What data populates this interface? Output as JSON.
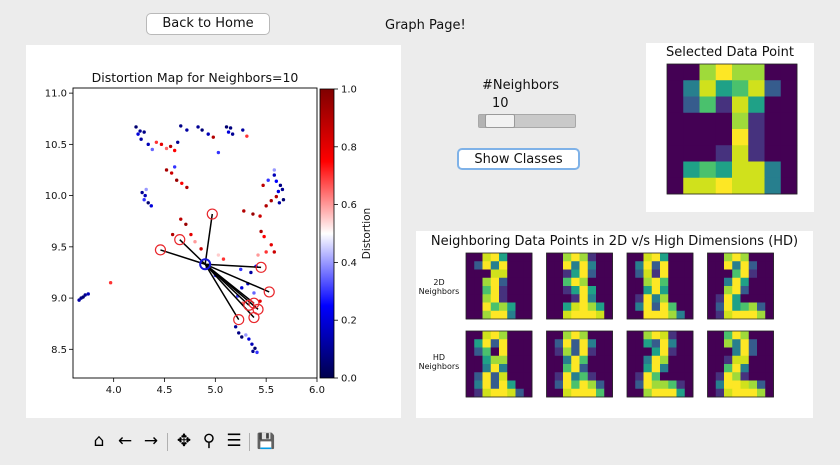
{
  "header": {
    "back_label": "Back to Home",
    "title": "Graph Page!"
  },
  "controls": {
    "neighbors_label": "#Neighbors",
    "neighbors_value": "10",
    "slider_level": 0.1,
    "show_classes_label": "Show Classes"
  },
  "selected": {
    "title": "Selected Data Point",
    "pixels": [
      [
        0,
        0,
        6,
        8,
        6,
        6,
        0,
        0
      ],
      [
        0,
        3,
        7,
        4,
        5,
        7,
        2,
        0
      ],
      [
        0,
        2,
        5,
        1,
        7,
        4,
        0,
        0
      ],
      [
        0,
        0,
        0,
        0,
        6,
        1,
        0,
        0
      ],
      [
        0,
        0,
        0,
        0,
        8,
        1,
        0,
        0
      ],
      [
        0,
        0,
        0,
        1,
        7,
        1,
        0,
        0
      ],
      [
        0,
        4,
        5,
        4,
        7,
        7,
        3,
        0
      ],
      [
        0,
        7,
        7,
        8,
        7,
        7,
        3,
        0
      ]
    ]
  },
  "neighbors": {
    "title": "Neighboring Data Points in 2D v/s High Dimensions (HD)",
    "row_2d": [
      "2D",
      "Neighbors"
    ],
    "row_hd": [
      "HD",
      "Neighbors"
    ],
    "images_2d": [
      [
        [
          0,
          0,
          7,
          8,
          4,
          0,
          0,
          0
        ],
        [
          0,
          2,
          8,
          3,
          8,
          0,
          0,
          0
        ],
        [
          0,
          0,
          0,
          7,
          7,
          0,
          0,
          0
        ],
        [
          0,
          0,
          6,
          8,
          2,
          0,
          0,
          0
        ],
        [
          0,
          0,
          5,
          8,
          1,
          0,
          0,
          0
        ],
        [
          0,
          0,
          6,
          8,
          1,
          0,
          0,
          0
        ],
        [
          0,
          0,
          8,
          5,
          6,
          4,
          0,
          0
        ],
        [
          0,
          0,
          6,
          8,
          8,
          3,
          0,
          0
        ]
      ],
      [
        [
          0,
          0,
          6,
          8,
          6,
          1,
          0,
          0
        ],
        [
          0,
          0,
          8,
          3,
          8,
          3,
          0,
          0
        ],
        [
          0,
          0,
          1,
          4,
          8,
          2,
          0,
          0
        ],
        [
          0,
          0,
          5,
          8,
          6,
          0,
          0,
          0
        ],
        [
          0,
          0,
          1,
          4,
          8,
          4,
          0,
          0
        ],
        [
          0,
          0,
          0,
          1,
          8,
          3,
          0,
          0
        ],
        [
          0,
          0,
          4,
          7,
          8,
          6,
          4,
          0
        ],
        [
          0,
          0,
          7,
          8,
          8,
          8,
          7,
          0
        ]
      ],
      [
        [
          0,
          0,
          7,
          8,
          4,
          0,
          0,
          0
        ],
        [
          0,
          3,
          8,
          2,
          8,
          0,
          0,
          0
        ],
        [
          0,
          2,
          7,
          1,
          8,
          0,
          0,
          0
        ],
        [
          0,
          0,
          6,
          8,
          5,
          0,
          0,
          0
        ],
        [
          0,
          0,
          4,
          8,
          4,
          0,
          0,
          0
        ],
        [
          0,
          1,
          8,
          3,
          6,
          0,
          0,
          0
        ],
        [
          0,
          3,
          8,
          2,
          8,
          5,
          0,
          0
        ],
        [
          0,
          0,
          8,
          8,
          8,
          6,
          3,
          0
        ]
      ],
      [
        [
          0,
          0,
          6,
          8,
          6,
          0,
          0,
          0
        ],
        [
          0,
          0,
          8,
          3,
          8,
          2,
          0,
          0
        ],
        [
          0,
          0,
          0,
          5,
          8,
          1,
          0,
          0
        ],
        [
          0,
          0,
          3,
          8,
          4,
          0,
          0,
          0
        ],
        [
          0,
          0,
          6,
          8,
          2,
          0,
          0,
          0
        ],
        [
          0,
          1,
          8,
          4,
          0,
          0,
          0,
          0
        ],
        [
          0,
          2,
          8,
          4,
          5,
          6,
          2,
          0
        ],
        [
          0,
          1,
          7,
          8,
          8,
          8,
          6,
          0
        ]
      ]
    ],
    "images_hd": [
      [
        [
          0,
          0,
          7,
          8,
          6,
          0,
          0,
          0
        ],
        [
          0,
          4,
          8,
          2,
          8,
          0,
          0,
          0
        ],
        [
          0,
          2,
          5,
          0,
          8,
          0,
          0,
          0
        ],
        [
          0,
          0,
          4,
          6,
          6,
          0,
          0,
          0
        ],
        [
          0,
          0,
          3,
          8,
          3,
          0,
          0,
          0
        ],
        [
          0,
          2,
          8,
          2,
          7,
          0,
          0,
          0
        ],
        [
          0,
          3,
          8,
          2,
          8,
          4,
          0,
          0
        ],
        [
          0,
          1,
          7,
          8,
          8,
          7,
          2,
          0
        ]
      ],
      [
        [
          0,
          0,
          6,
          8,
          6,
          0,
          0,
          0
        ],
        [
          0,
          2,
          8,
          2,
          8,
          3,
          0,
          0
        ],
        [
          0,
          1,
          6,
          2,
          8,
          1,
          0,
          0
        ],
        [
          0,
          0,
          3,
          8,
          5,
          0,
          0,
          0
        ],
        [
          0,
          0,
          5,
          8,
          2,
          0,
          0,
          0
        ],
        [
          0,
          1,
          8,
          3,
          5,
          1,
          0,
          0
        ],
        [
          0,
          2,
          8,
          5,
          8,
          6,
          2,
          0
        ],
        [
          0,
          0,
          7,
          8,
          8,
          8,
          5,
          0
        ]
      ],
      [
        [
          0,
          0,
          6,
          8,
          7,
          1,
          0,
          0
        ],
        [
          0,
          0,
          4,
          2,
          8,
          3,
          0,
          0
        ],
        [
          0,
          0,
          0,
          4,
          8,
          1,
          0,
          0
        ],
        [
          0,
          0,
          3,
          8,
          6,
          0,
          0,
          0
        ],
        [
          0,
          0,
          4,
          8,
          3,
          0,
          0,
          0
        ],
        [
          0,
          1,
          8,
          5,
          0,
          0,
          0,
          0
        ],
        [
          0,
          2,
          8,
          6,
          6,
          5,
          1,
          0
        ],
        [
          0,
          0,
          6,
          8,
          8,
          8,
          4,
          0
        ]
      ],
      [
        [
          0,
          0,
          5,
          8,
          6,
          0,
          0,
          0
        ],
        [
          0,
          0,
          6,
          3,
          8,
          2,
          0,
          0
        ],
        [
          0,
          0,
          0,
          3,
          8,
          2,
          0,
          0
        ],
        [
          0,
          0,
          1,
          7,
          7,
          0,
          0,
          0
        ],
        [
          0,
          0,
          5,
          8,
          3,
          0,
          0,
          0
        ],
        [
          0,
          1,
          8,
          6,
          1,
          0,
          0,
          0
        ],
        [
          0,
          3,
          8,
          8,
          7,
          6,
          2,
          0
        ],
        [
          0,
          1,
          7,
          8,
          8,
          8,
          6,
          0
        ]
      ]
    ]
  },
  "chart_data": {
    "type": "scatter",
    "title": "Distortion Map for Neighbors=10",
    "xlabel": "",
    "ylabel": "",
    "xlim": [
      3.6,
      6.0
    ],
    "ylim": [
      8.22,
      11.05
    ],
    "xticks": [
      "4.0",
      "4.5",
      "5.0",
      "5.5",
      "6.0"
    ],
    "xtick_values": [
      4.0,
      4.5,
      5.0,
      5.5,
      6.0
    ],
    "yticks": [
      "8.5",
      "9.0",
      "9.5",
      "10.0",
      "10.5",
      "11.0"
    ],
    "ytick_values": [
      8.5,
      9.0,
      9.5,
      10.0,
      10.5,
      11.0
    ],
    "colorbar": {
      "label": "Distortion",
      "ticks": [
        "0.0",
        "0.2",
        "0.4",
        "0.6",
        "0.8",
        "1.0"
      ],
      "colormap": "seismic",
      "range": [
        0,
        1
      ]
    },
    "selected_point": {
      "x": 4.9,
      "y": 9.33
    },
    "neighbor_points": [
      {
        "x": 4.46,
        "y": 9.47
      },
      {
        "x": 4.65,
        "y": 9.57
      },
      {
        "x": 4.97,
        "y": 9.82
      },
      {
        "x": 5.45,
        "y": 9.3
      },
      {
        "x": 5.53,
        "y": 9.06
      },
      {
        "x": 5.38,
        "y": 8.95
      },
      {
        "x": 5.42,
        "y": 8.89
      },
      {
        "x": 5.33,
        "y": 8.93
      },
      {
        "x": 5.38,
        "y": 8.81
      },
      {
        "x": 5.23,
        "y": 8.79
      }
    ],
    "points": [
      {
        "x": 4.22,
        "y": 10.67,
        "d": 0.05
      },
      {
        "x": 4.26,
        "y": 10.63,
        "d": 0.1
      },
      {
        "x": 4.3,
        "y": 10.62,
        "d": 0.08
      },
      {
        "x": 4.27,
        "y": 10.55,
        "d": 0.12
      },
      {
        "x": 4.24,
        "y": 10.6,
        "d": 0.2
      },
      {
        "x": 4.34,
        "y": 10.5,
        "d": 0.15
      },
      {
        "x": 4.38,
        "y": 10.45,
        "d": 0.35
      },
      {
        "x": 4.42,
        "y": 10.52,
        "d": 0.7
      },
      {
        "x": 4.47,
        "y": 10.5,
        "d": 0.8
      },
      {
        "x": 4.52,
        "y": 10.46,
        "d": 0.65
      },
      {
        "x": 4.56,
        "y": 10.48,
        "d": 0.9
      },
      {
        "x": 4.6,
        "y": 10.44,
        "d": 0.75
      },
      {
        "x": 4.63,
        "y": 10.52,
        "d": 0.1
      },
      {
        "x": 4.66,
        "y": 10.68,
        "d": 0.08
      },
      {
        "x": 4.72,
        "y": 10.64,
        "d": 0.12
      },
      {
        "x": 4.83,
        "y": 10.67,
        "d": 0.1
      },
      {
        "x": 4.87,
        "y": 10.64,
        "d": 0.06
      },
      {
        "x": 4.93,
        "y": 10.6,
        "d": 0.15
      },
      {
        "x": 4.98,
        "y": 10.57,
        "d": 0.9
      },
      {
        "x": 5.03,
        "y": 10.42,
        "d": 0.3
      },
      {
        "x": 5.11,
        "y": 10.67,
        "d": 0.05
      },
      {
        "x": 5.15,
        "y": 10.66,
        "d": 0.07
      },
      {
        "x": 5.13,
        "y": 10.62,
        "d": 0.2
      },
      {
        "x": 5.17,
        "y": 10.6,
        "d": 0.1
      },
      {
        "x": 5.27,
        "y": 10.64,
        "d": 0.12
      },
      {
        "x": 5.31,
        "y": 10.58,
        "d": 0.7
      },
      {
        "x": 4.28,
        "y": 10.03,
        "d": 0.1
      },
      {
        "x": 4.31,
        "y": 10.0,
        "d": 0.15
      },
      {
        "x": 4.3,
        "y": 9.96,
        "d": 0.3
      },
      {
        "x": 4.34,
        "y": 9.93,
        "d": 0.05
      },
      {
        "x": 4.37,
        "y": 9.9,
        "d": 0.2
      },
      {
        "x": 4.32,
        "y": 10.06,
        "d": 0.4
      },
      {
        "x": 4.52,
        "y": 10.25,
        "d": 0.92
      },
      {
        "x": 4.57,
        "y": 10.22,
        "d": 0.85
      },
      {
        "x": 4.62,
        "y": 10.15,
        "d": 0.95
      },
      {
        "x": 4.67,
        "y": 10.12,
        "d": 0.75
      },
      {
        "x": 4.6,
        "y": 10.28,
        "d": 0.3
      },
      {
        "x": 4.72,
        "y": 10.08,
        "d": 0.9
      },
      {
        "x": 4.66,
        "y": 9.77,
        "d": 0.88
      },
      {
        "x": 4.71,
        "y": 9.72,
        "d": 0.95
      },
      {
        "x": 4.76,
        "y": 9.62,
        "d": 0.8
      },
      {
        "x": 4.58,
        "y": 9.62,
        "d": 0.9
      },
      {
        "x": 4.8,
        "y": 9.55,
        "d": 0.6
      },
      {
        "x": 4.86,
        "y": 9.48,
        "d": 0.85
      },
      {
        "x": 5.03,
        "y": 9.42,
        "d": 0.55
      },
      {
        "x": 5.08,
        "y": 9.38,
        "d": 0.7
      },
      {
        "x": 5.14,
        "y": 9.35,
        "d": 0.5
      },
      {
        "x": 5.25,
        "y": 9.28,
        "d": 0.3
      },
      {
        "x": 5.35,
        "y": 9.25,
        "d": 0.12
      },
      {
        "x": 5.4,
        "y": 9.31,
        "d": 0.25
      },
      {
        "x": 5.28,
        "y": 9.85,
        "d": 0.9
      },
      {
        "x": 5.37,
        "y": 9.82,
        "d": 0.95
      },
      {
        "x": 5.44,
        "y": 9.8,
        "d": 0.85
      },
      {
        "x": 5.5,
        "y": 9.9,
        "d": 0.9
      },
      {
        "x": 5.47,
        "y": 10.1,
        "d": 0.88
      },
      {
        "x": 5.55,
        "y": 9.95,
        "d": 0.92
      },
      {
        "x": 5.6,
        "y": 9.99,
        "d": 0.9
      },
      {
        "x": 5.52,
        "y": 10.15,
        "d": 0.3
      },
      {
        "x": 5.58,
        "y": 10.2,
        "d": 0.15
      },
      {
        "x": 5.6,
        "y": 10.14,
        "d": 0.25
      },
      {
        "x": 5.64,
        "y": 10.1,
        "d": 0.08
      },
      {
        "x": 5.66,
        "y": 10.06,
        "d": 0.1
      },
      {
        "x": 5.62,
        "y": 10.04,
        "d": 0.2
      },
      {
        "x": 5.67,
        "y": 9.96,
        "d": 0.05
      },
      {
        "x": 5.63,
        "y": 9.93,
        "d": 0.12
      },
      {
        "x": 5.58,
        "y": 10.25,
        "d": 0.4
      },
      {
        "x": 5.45,
        "y": 9.65,
        "d": 0.9
      },
      {
        "x": 5.48,
        "y": 9.6,
        "d": 0.75
      },
      {
        "x": 5.55,
        "y": 9.52,
        "d": 0.8
      },
      {
        "x": 5.58,
        "y": 9.45,
        "d": 0.85
      },
      {
        "x": 5.5,
        "y": 9.45,
        "d": 0.7
      },
      {
        "x": 5.42,
        "y": 9.42,
        "d": 0.6
      },
      {
        "x": 5.32,
        "y": 9.14,
        "d": 0.15
      },
      {
        "x": 5.26,
        "y": 9.1,
        "d": 0.2
      },
      {
        "x": 5.22,
        "y": 9.02,
        "d": 0.3
      },
      {
        "x": 5.33,
        "y": 9.05,
        "d": 0.5
      },
      {
        "x": 5.38,
        "y": 9.05,
        "d": 0.35
      },
      {
        "x": 5.27,
        "y": 8.95,
        "d": 0.65
      },
      {
        "x": 5.44,
        "y": 8.97,
        "d": 0.8
      },
      {
        "x": 5.2,
        "y": 8.72,
        "d": 0.1
      },
      {
        "x": 5.23,
        "y": 8.66,
        "d": 0.08
      },
      {
        "x": 5.26,
        "y": 8.62,
        "d": 0.05
      },
      {
        "x": 5.33,
        "y": 8.6,
        "d": 0.2
      },
      {
        "x": 5.36,
        "y": 8.55,
        "d": 0.15
      },
      {
        "x": 5.39,
        "y": 8.51,
        "d": 0.05
      },
      {
        "x": 5.41,
        "y": 8.47,
        "d": 0.3
      },
      {
        "x": 5.37,
        "y": 8.48,
        "d": 0.1
      },
      {
        "x": 5.3,
        "y": 8.64,
        "d": 0.4
      },
      {
        "x": 3.72,
        "y": 9.03,
        "d": 0.1
      },
      {
        "x": 3.7,
        "y": 9.01,
        "d": 0.05
      },
      {
        "x": 3.68,
        "y": 9.0,
        "d": 0.08
      },
      {
        "x": 3.66,
        "y": 8.98,
        "d": 0.12
      },
      {
        "x": 3.75,
        "y": 9.04,
        "d": 0.15
      },
      {
        "x": 3.97,
        "y": 9.15,
        "d": 0.7
      },
      {
        "x": 4.92,
        "y": 9.3,
        "d": 0.05
      },
      {
        "x": 5.0,
        "y": 9.22,
        "d": 0.3
      }
    ]
  },
  "toolbar": {
    "tools": [
      {
        "name": "home-icon",
        "glyph": "⌂"
      },
      {
        "name": "back-arrow-icon",
        "glyph": "←"
      },
      {
        "name": "forward-arrow-icon",
        "glyph": "→"
      },
      {
        "name": "pan-icon",
        "glyph": "✥"
      },
      {
        "name": "zoom-icon",
        "glyph": "⚲"
      },
      {
        "name": "configure-subplots-icon",
        "glyph": "☰"
      },
      {
        "name": "save-icon",
        "glyph": "💾"
      }
    ]
  }
}
